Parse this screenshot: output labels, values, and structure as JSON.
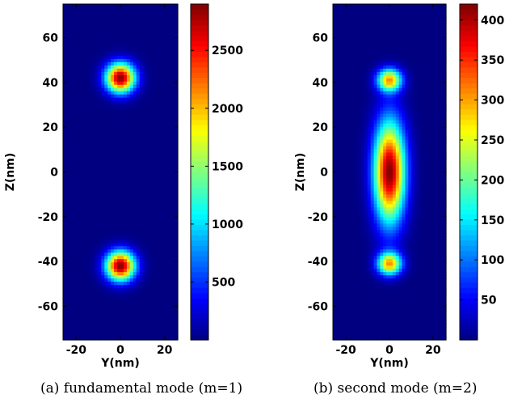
{
  "chart_data": [
    {
      "type": "heatmap",
      "panel": "a",
      "caption": "(a) fundamental mode (m=1)",
      "xlabel": "Y(nm)",
      "ylabel": "Z(nm)",
      "xlim": [
        -26,
        26
      ],
      "ylim": [
        -75,
        75
      ],
      "x_ticks": [
        -20,
        0,
        20
      ],
      "y_ticks": [
        -60,
        -40,
        -20,
        0,
        20,
        40,
        60
      ],
      "colorbar": {
        "range": [
          0,
          2900
        ],
        "ticks": [
          500,
          1000,
          1500,
          2000,
          2500
        ],
        "colormap": "jet"
      },
      "peaks": [
        {
          "y": 0,
          "z": 42,
          "value": 2900,
          "spread_y": 6.5,
          "spread_z": 6.5
        },
        {
          "y": 0,
          "z": -42,
          "value": 2900,
          "spread_y": 6.5,
          "spread_z": 6.5
        }
      ],
      "background_value": 0
    },
    {
      "type": "heatmap",
      "panel": "b",
      "caption": "(b) second mode (m=2)",
      "xlabel": "Y(nm)",
      "ylabel": "Z(nm)",
      "xlim": [
        -26,
        26
      ],
      "ylim": [
        -75,
        75
      ],
      "x_ticks": [
        -20,
        0,
        20
      ],
      "y_ticks": [
        -60,
        -40,
        -20,
        0,
        20,
        40,
        60
      ],
      "colorbar": {
        "range": [
          0,
          420
        ],
        "ticks": [
          50,
          100,
          150,
          200,
          250,
          300,
          350,
          400
        ],
        "colormap": "jet"
      },
      "peaks": [
        {
          "y": 0,
          "z": 0,
          "value": 420,
          "spread_y": 7,
          "spread_z": 22
        },
        {
          "y": 0,
          "z": 41,
          "value": 300,
          "spread_y": 5.5,
          "spread_z": 5
        },
        {
          "y": 0,
          "z": -41,
          "value": 300,
          "spread_y": 5.5,
          "spread_z": 5
        }
      ],
      "background_value": 0
    }
  ]
}
